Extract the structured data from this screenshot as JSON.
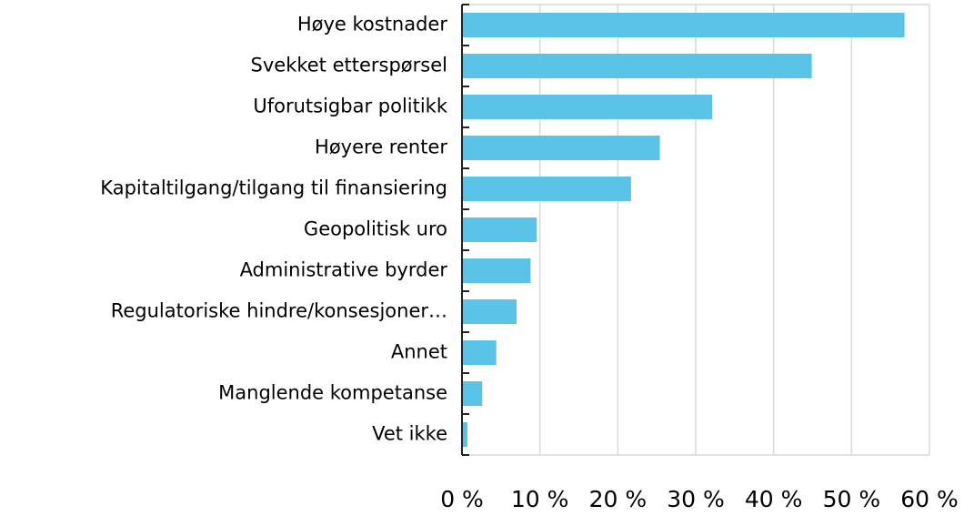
{
  "chart_data": {
    "type": "barh",
    "categories": [
      "Høye kostnader",
      "Svekket etterspørsel",
      "Uforutsigbar politikk",
      "Høyere renter",
      "Kapitaltilgang/tilgang til finansiering",
      "Geopolitisk uro",
      "Administrative byrder",
      "Regulatoriske hindre/konsesjoner…",
      "Annet",
      "Manglende kompetanse",
      "Vet ikke"
    ],
    "values": [
      56.8,
      44.9,
      32.1,
      25.4,
      21.7,
      9.6,
      8.8,
      7.0,
      4.4,
      2.6,
      0.7
    ],
    "color": "#5bc3e8",
    "xlim": [
      0,
      60
    ],
    "xticks": [
      {
        "value": 0,
        "label": "0 %"
      },
      {
        "value": 10,
        "label": "10 %"
      },
      {
        "value": 20,
        "label": "20 %"
      },
      {
        "value": 30,
        "label": "30 %"
      },
      {
        "value": 40,
        "label": "40 %"
      },
      {
        "value": 50,
        "label": "50 %"
      },
      {
        "value": 60,
        "label": "60 %"
      }
    ],
    "grid": true
  }
}
